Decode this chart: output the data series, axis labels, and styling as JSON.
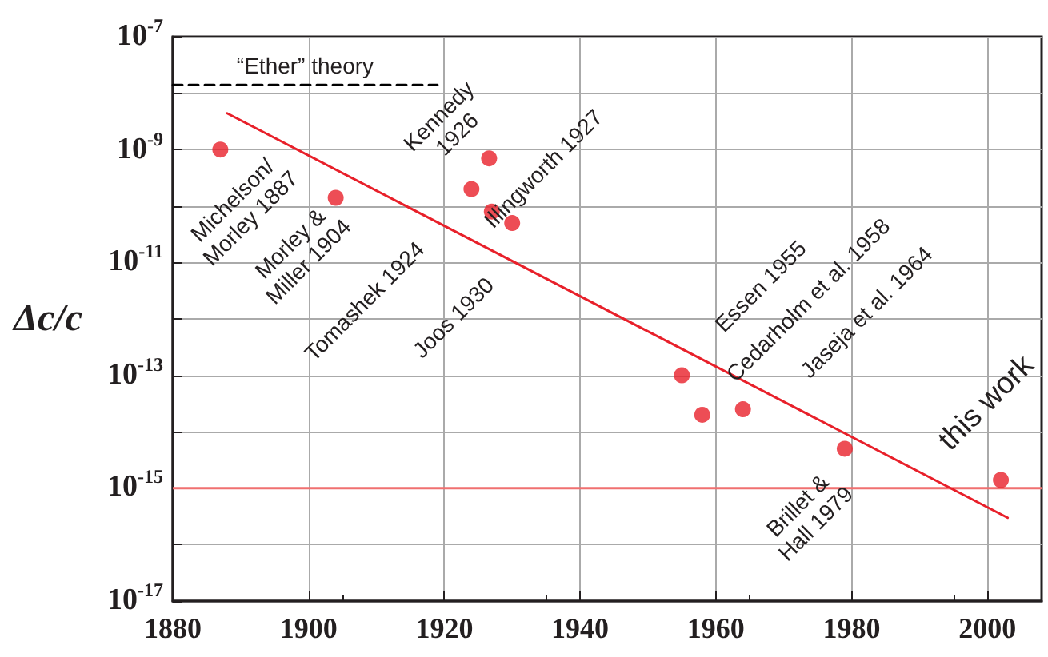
{
  "chart_data": {
    "type": "scatter",
    "ylabel": "Δc/c",
    "series": [
      {
        "color": "#e8202a",
        "x": [
          1887,
          1904,
          1926.6,
          1924,
          1927,
          1930,
          1955,
          1958,
          1964,
          1979,
          2002
        ],
        "values": [
          1e-09,
          1.4e-10,
          7e-10,
          2e-10,
          8e-11,
          5e-11,
          1e-13,
          2e-14,
          2.5e-14,
          5e-15,
          1.4e-15
        ]
      },
      {
        "type": "line",
        "color": "#e8202a",
        "marker": "none",
        "x": [
          1888,
          2003
        ],
        "values": [
          4.4e-09,
          3e-16
        ]
      },
      {
        "type": "line",
        "name": "“Ether” theory",
        "color": "#000000",
        "marker": "none",
        "line_style": "dashed",
        "x": [
          1880,
          1919
        ],
        "values": [
          1.4e-08,
          1.4e-08
        ]
      }
    ],
    "annotations": [
      {
        "text": "Michelson/\nMorley 1887",
        "x": 1887,
        "y": 1e-09
      },
      {
        "text": "Morley &\nMiller 1904",
        "x": 1904,
        "y": 1.4e-10
      },
      {
        "text": "Kennedy\n1926",
        "x": 1926.6,
        "y": 7e-10
      },
      {
        "text": "Tomashek 1924",
        "x": 1924,
        "y": 2e-10
      },
      {
        "text": "Illingworth 1927",
        "x": 1927,
        "y": 8e-11
      },
      {
        "text": "Joos 1930",
        "x": 1930,
        "y": 5e-11
      },
      {
        "text": "Essen 1955",
        "x": 1955,
        "y": 1e-13
      },
      {
        "text": "Cedarholm et al. 1958",
        "x": 1958,
        "y": 2e-14
      },
      {
        "text": "Jaseja et al. 1964",
        "x": 1964,
        "y": 2.5e-14
      },
      {
        "text": "Brillet &\nHall 1979",
        "x": 1979,
        "y": 5e-15
      },
      {
        "text": "this work",
        "x": 2002,
        "y": 1.4e-15
      }
    ],
    "ref_lines": [
      {
        "axis": "y",
        "value": 1e-15,
        "color": "#f07070"
      }
    ],
    "xlim": [
      1880,
      2008
    ],
    "xticks": [
      1880,
      1900,
      1920,
      1940,
      1960,
      1980,
      2000
    ],
    "ylim": [
      1e-17,
      1e-07
    ],
    "yticks": [
      {
        "value": 1e-17,
        "label": "10$^{-17}$"
      },
      {
        "value": 1e-16,
        "label": null
      },
      {
        "value": 1e-15,
        "label": "10$^{-15}$"
      },
      {
        "value": 1e-14,
        "label": null
      },
      {
        "value": 1e-13,
        "label": "10$^{-13}$"
      },
      {
        "value": 1e-12,
        "label": null
      },
      {
        "value": 1e-11,
        "label": "10$^{-11}$"
      },
      {
        "value": 1e-10,
        "label": null
      },
      {
        "value": 1e-09,
        "label": "10$^{-9}$"
      },
      {
        "value": 1e-08,
        "label": null
      },
      {
        "value": 1e-07,
        "label": "10$^{-7}$"
      }
    ],
    "log": "y",
    "grid": true,
    "legend": false,
    "marker": "circle"
  }
}
